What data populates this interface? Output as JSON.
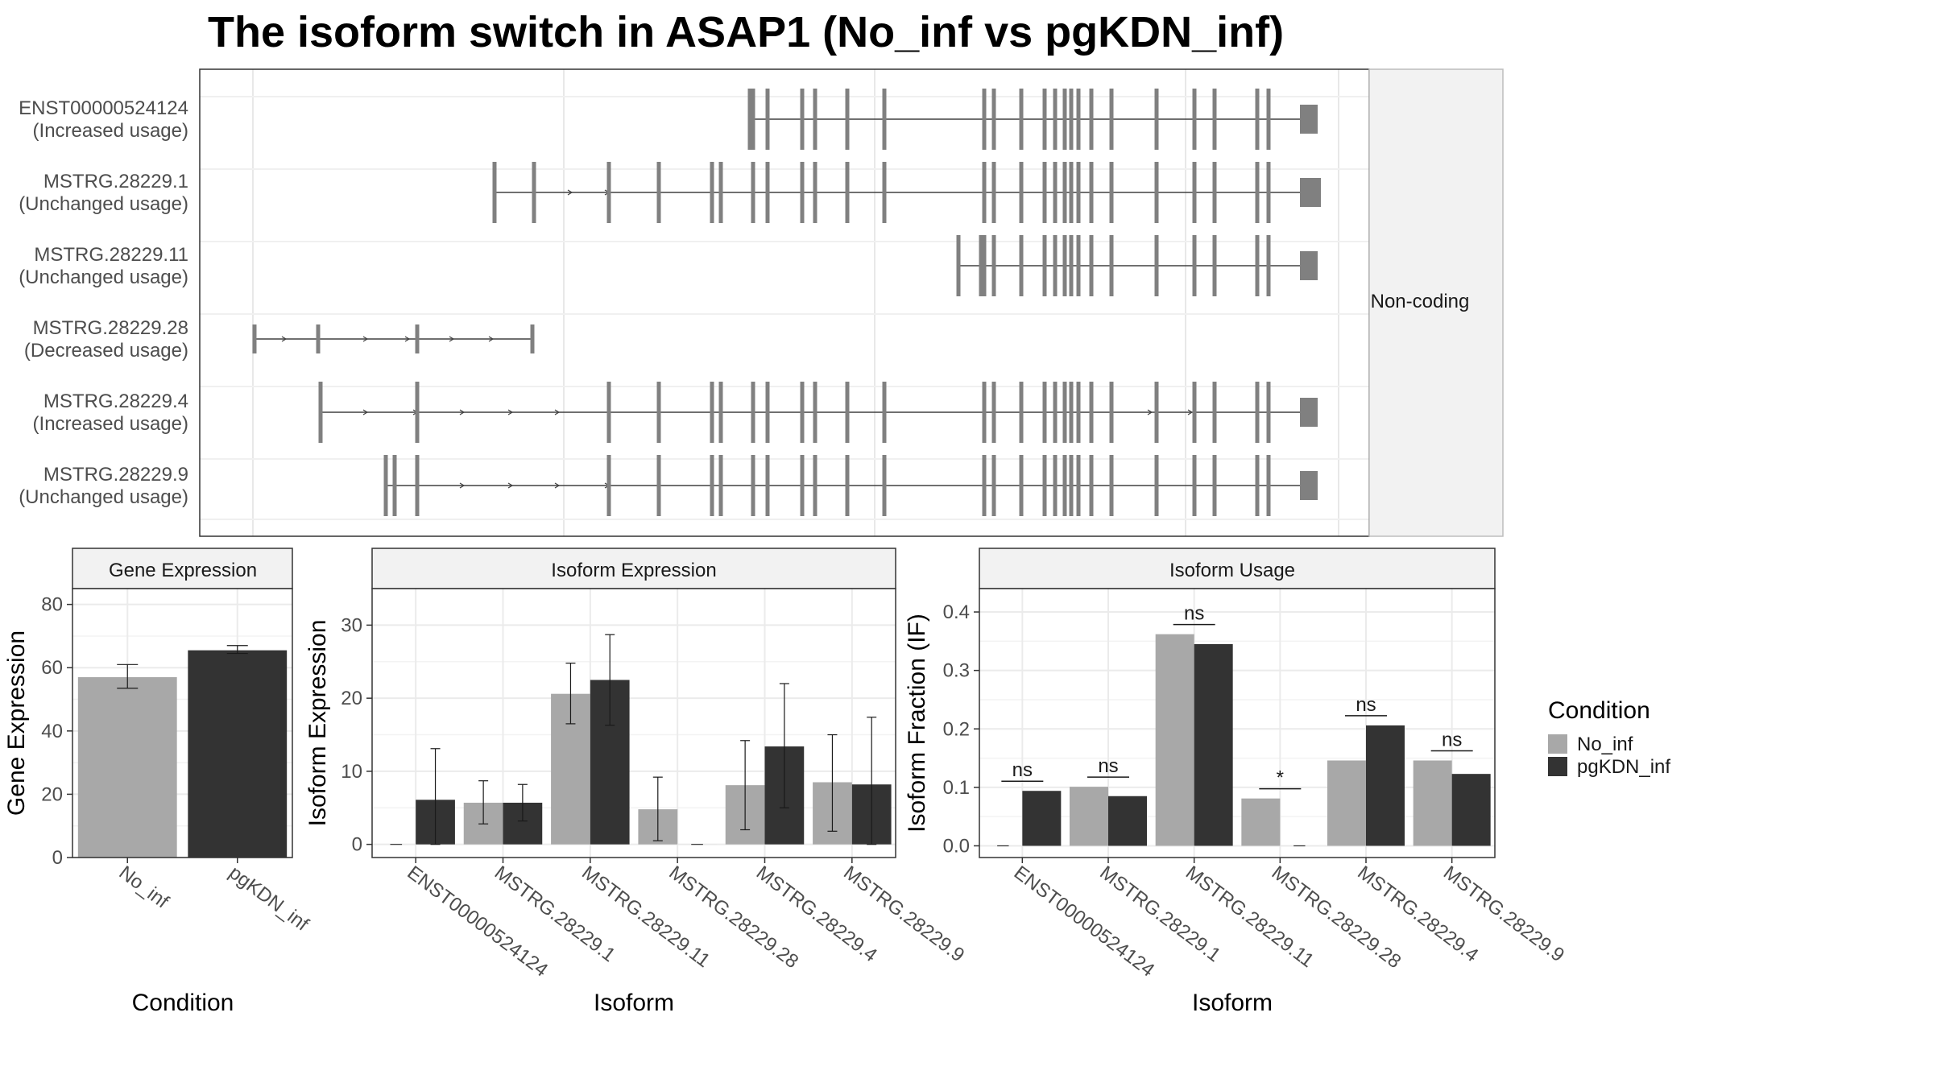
{
  "title": "The isoform switch in ASAP1 (No_inf vs pgKDN_inf)",
  "colors": {
    "no_inf": "#a8a8a8",
    "pgkdn_inf": "#333333",
    "exon": "#808080",
    "intron": "#404040",
    "grid": "#ebebeb",
    "strip": "#f2f2f2",
    "border": "#333333"
  },
  "isoform_plot": {
    "strip_label": "Non-coding",
    "tracks": [
      {
        "name": "ENST00000524124",
        "usage": "(Increased usage)"
      },
      {
        "name": "MSTRG.28229.1",
        "usage": "(Unchanged usage)"
      },
      {
        "name": "MSTRG.28229.11",
        "usage": "(Unchanged usage)"
      },
      {
        "name": "MSTRG.28229.28",
        "usage": "(Decreased usage)"
      },
      {
        "name": "MSTRG.28229.4",
        "usage": "(Increased usage)"
      },
      {
        "name": "MSTRG.28229.9",
        "usage": "(Unchanged usage)"
      }
    ]
  },
  "legend": {
    "title": "Condition",
    "items": [
      "No_inf",
      "pgKDN_inf"
    ]
  },
  "chart_data": [
    {
      "type": "bar",
      "panel": "Gene Expression",
      "xlabel": "Condition",
      "ylabel": "Gene Expression",
      "ylim": [
        0,
        85
      ],
      "yticks": [
        0,
        20,
        40,
        60,
        80
      ],
      "categories": [
        "No_inf",
        "pgKDN_inf"
      ],
      "values": [
        57.0,
        65.5
      ],
      "err_low": [
        53.5,
        64.5
      ],
      "err_high": [
        61.0,
        67.0
      ],
      "grid": true
    },
    {
      "type": "bar",
      "panel": "Isoform Expression",
      "xlabel": "Isoform",
      "ylabel": "Isoform Expression",
      "ylim": [
        -1.8,
        35
      ],
      "yticks": [
        0,
        10,
        20,
        30
      ],
      "categories": [
        "ENST00000524124",
        "MSTRG.28229.1",
        "MSTRG.28229.11",
        "MSTRG.28229.28",
        "MSTRG.28229.4",
        "MSTRG.28229.9"
      ],
      "series": [
        {
          "name": "No_inf",
          "values": [
            0.0,
            5.7,
            20.6,
            4.8,
            8.1,
            8.5
          ],
          "err_low": [
            0.0,
            2.8,
            16.5,
            0.5,
            2.0,
            1.8
          ],
          "err_high": [
            0.0,
            8.7,
            24.8,
            9.2,
            14.2,
            15.0
          ]
        },
        {
          "name": "pgKDN_inf",
          "values": [
            6.1,
            5.7,
            22.5,
            0.0,
            13.4,
            8.2
          ],
          "err_low": [
            0.0,
            3.2,
            16.3,
            0.0,
            5.0,
            0.0
          ],
          "err_high": [
            13.1,
            8.2,
            28.7,
            0.0,
            22.0,
            17.4
          ]
        }
      ],
      "grid": true
    },
    {
      "type": "bar",
      "panel": "Isoform Usage",
      "xlabel": "Isoform",
      "ylabel": "Isoform Fraction (IF)",
      "ylim": [
        -0.02,
        0.44
      ],
      "yticks": [
        0.0,
        0.1,
        0.2,
        0.3,
        0.4
      ],
      "categories": [
        "ENST00000524124",
        "MSTRG.28229.1",
        "MSTRG.28229.11",
        "MSTRG.28229.28",
        "MSTRG.28229.4",
        "MSTRG.28229.9"
      ],
      "series": [
        {
          "name": "No_inf",
          "values": [
            0.0,
            0.101,
            0.362,
            0.081,
            0.146,
            0.146
          ]
        },
        {
          "name": "pgKDN_inf",
          "values": [
            0.094,
            0.085,
            0.345,
            0.0,
            0.206,
            0.123
          ]
        }
      ],
      "significance": [
        "ns",
        "ns",
        "ns",
        "*",
        "ns",
        "ns"
      ],
      "grid": true
    }
  ]
}
